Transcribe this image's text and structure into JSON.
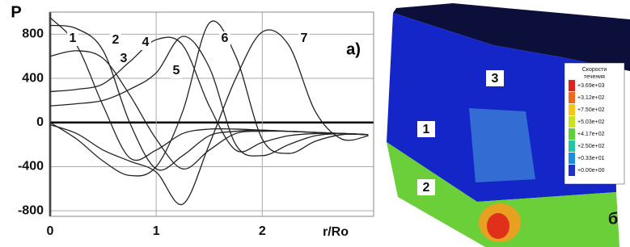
{
  "chart_data": {
    "type": "line",
    "y_label": "P",
    "x_label": "r/Ro",
    "annotation": "a)",
    "x": [
      0,
      0.25,
      0.5,
      0.75,
      1.0,
      1.25,
      1.5,
      1.75,
      2.0,
      2.25,
      2.5,
      2.75,
      3.0
    ],
    "series": [
      {
        "name": "1",
        "color": "#222222",
        "values": [
          950,
          700,
          150,
          -320,
          -250,
          -100,
          -60,
          -60,
          -70,
          -80,
          -90,
          -100,
          -110
        ]
      },
      {
        "name": "2",
        "color": "#222222",
        "values": [
          880,
          850,
          650,
          0,
          -420,
          -300,
          -120,
          -80,
          -70,
          -80,
          -90,
          -100,
          -110
        ]
      },
      {
        "name": "3",
        "color": "#222222",
        "values": [
          600,
          650,
          580,
          250,
          -150,
          -420,
          -250,
          -100,
          -80,
          -80,
          -90,
          -100,
          -110
        ]
      },
      {
        "name": "4",
        "color": "#222222",
        "values": [
          280,
          300,
          350,
          550,
          750,
          700,
          150,
          -250,
          -180,
          -120,
          -100,
          -100,
          -110
        ]
      },
      {
        "name": "5",
        "color": "#222222",
        "values": [
          150,
          170,
          200,
          300,
          450,
          780,
          500,
          -200,
          -300,
          -200,
          -120,
          -100,
          -110
        ]
      },
      {
        "name": "6",
        "color": "#222222",
        "values": [
          0,
          -150,
          -350,
          -480,
          -400,
          100,
          900,
          600,
          -150,
          -280,
          -170,
          -110,
          -110
        ]
      },
      {
        "name": "7",
        "color": "#222222",
        "values": [
          -20,
          -100,
          -250,
          -350,
          -450,
          -740,
          -200,
          400,
          820,
          700,
          100,
          -150,
          -120
        ]
      }
    ],
    "xlim": [
      0,
      3.05
    ],
    "ylim": [
      -850,
      1000
    ],
    "xticks": [
      0,
      1,
      2
    ],
    "yticks": [
      800,
      400,
      0,
      -400,
      -800
    ],
    "grid": true
  },
  "figure_b": {
    "panel_label": "б",
    "region_labels": [
      "1",
      "2",
      "3"
    ],
    "legend_title": [
      "Скорости",
      "течения"
    ],
    "scale": [
      {
        "label": "+3.69e+03",
        "color": "#e3211c"
      },
      {
        "label": "+3.12e+02",
        "color": "#f06a1a"
      },
      {
        "label": "+7.50e+02",
        "color": "#f5c518"
      },
      {
        "label": "+5.03e+02",
        "color": "#c8e21e"
      },
      {
        "label": "+4.17e+02",
        "color": "#5cd13a"
      },
      {
        "label": "+2.50e+02",
        "color": "#22c6a0"
      },
      {
        "label": "+0.33e+01",
        "color": "#1c8de0"
      },
      {
        "label": "+0.00e+00",
        "color": "#1c2fd0"
      }
    ]
  }
}
